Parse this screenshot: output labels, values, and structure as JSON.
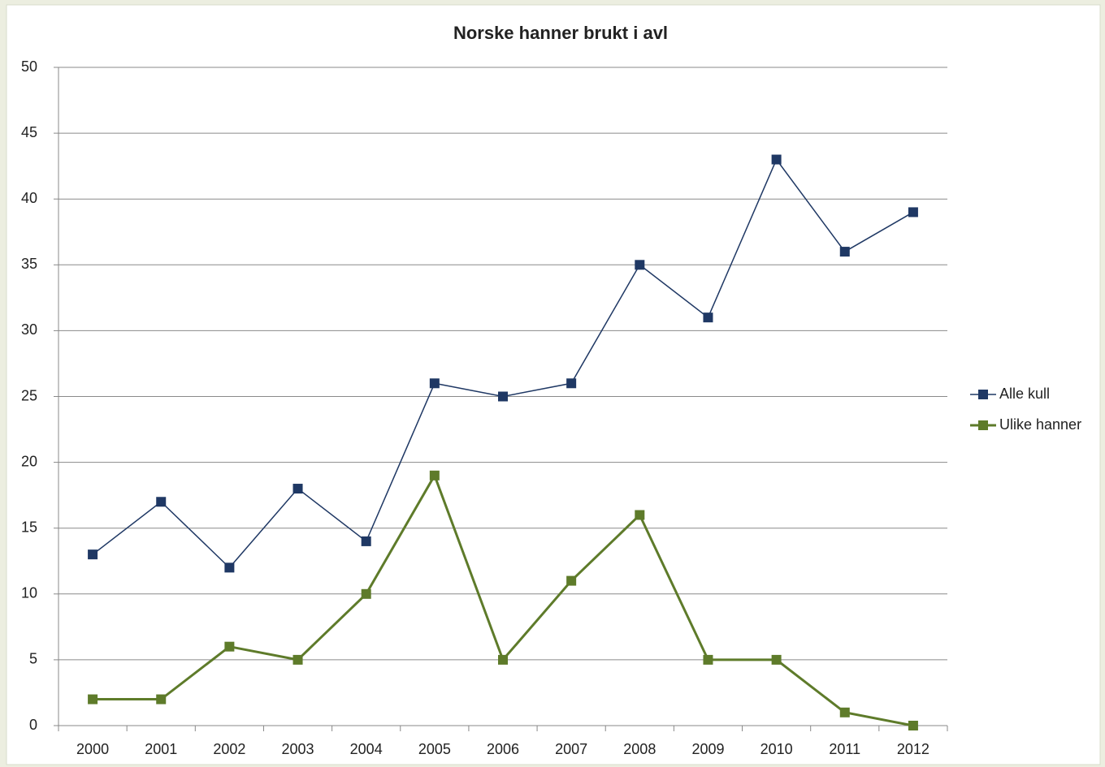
{
  "chart_data": {
    "type": "line",
    "title": "Norske hanner brukt i avl",
    "categories": [
      "2000",
      "2001",
      "2002",
      "2003",
      "2004",
      "2005",
      "2006",
      "2007",
      "2008",
      "2009",
      "2010",
      "2011",
      "2012"
    ],
    "series": [
      {
        "name": "Alle kull",
        "color": "#1f3864",
        "values": [
          13,
          17,
          12,
          18,
          14,
          26,
          25,
          26,
          35,
          31,
          43,
          36,
          39
        ]
      },
      {
        "name": "Ulike hanner",
        "color": "#5e7b2a",
        "values": [
          2,
          2,
          6,
          5,
          10,
          19,
          5,
          11,
          16,
          5,
          5,
          1,
          0
        ]
      }
    ],
    "ylim": [
      0,
      50
    ],
    "yticks": [
      0,
      5,
      10,
      15,
      20,
      25,
      30,
      35,
      40,
      45,
      50
    ],
    "grid": true,
    "legend": "right"
  }
}
